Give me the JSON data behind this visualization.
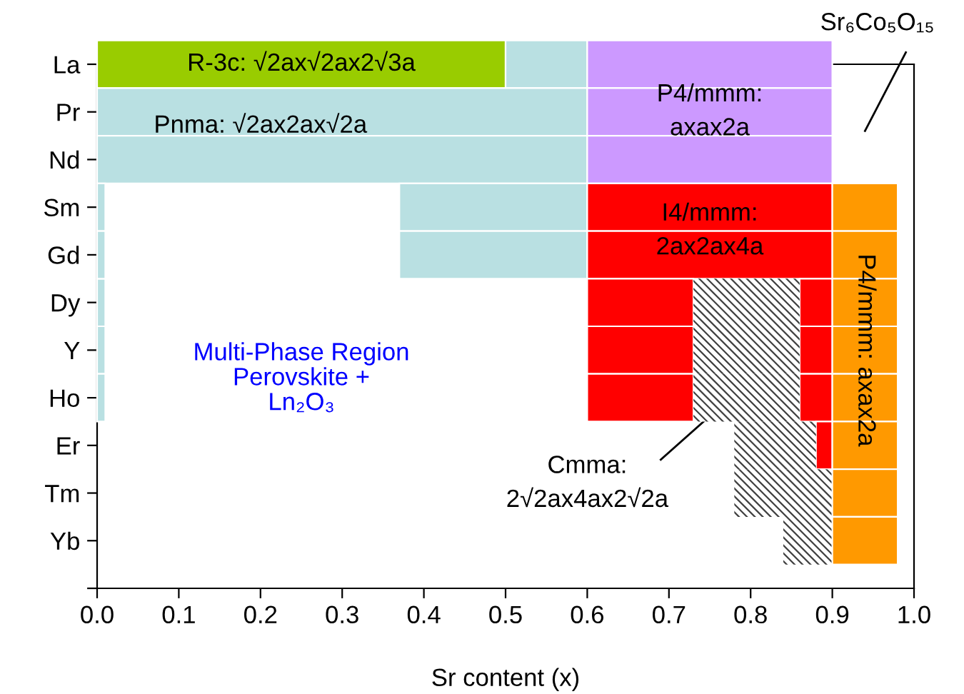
{
  "chart_data": {
    "type": "bar",
    "orientation": "horizontal",
    "xlabel": "Sr content (x)",
    "categories": [
      "La",
      "Pr",
      "Nd",
      "Sm",
      "Gd",
      "Dy",
      "Y",
      "Ho",
      "Er",
      "Tm",
      "Yb",
      null
    ],
    "xlim": [
      0,
      1
    ],
    "xticks": [
      {
        "value": 0,
        "label": "0.0"
      },
      {
        "value": 0.1,
        "label": "0.1"
      },
      {
        "value": 0.2,
        "label": "0.2"
      },
      {
        "value": 0.3,
        "label": "0.3"
      },
      {
        "value": 0.4,
        "label": "0.4"
      },
      {
        "value": 0.5,
        "label": "0.5"
      },
      {
        "value": 0.6,
        "label": "0.6"
      },
      {
        "value": 0.7,
        "label": "0.7"
      },
      {
        "value": 0.8,
        "label": "0.8"
      },
      {
        "value": 0.9,
        "label": "0.9"
      },
      {
        "value": 1,
        "label": "1.0"
      }
    ],
    "series": [
      {
        "name": "R-3c: √2ax√2ax2√3a",
        "color": "#99cc00",
        "base": [
          0,
          null,
          null,
          null,
          null,
          null,
          null,
          null,
          null,
          null,
          null,
          null
        ],
        "values": [
          0.5,
          null,
          null,
          null,
          null,
          null,
          null,
          null,
          null,
          null,
          null,
          null
        ]
      },
      {
        "name": "Pnma: √2ax2ax√2a",
        "color": "#b9e0e2",
        "base": [
          0.5,
          0,
          0,
          0.37,
          0.37,
          0,
          0,
          0,
          null,
          null,
          null,
          null
        ],
        "values": [
          0.1,
          0.6,
          0.6,
          0.23,
          0.23,
          0.01,
          0.01,
          0.01,
          null,
          null,
          null,
          null
        ]
      },
      {
        "color": "#b9e0e2",
        "base": [
          null,
          null,
          null,
          0,
          0,
          null,
          null,
          null,
          null,
          null,
          null,
          null
        ],
        "values": [
          null,
          null,
          null,
          0.01,
          0.01,
          null,
          null,
          null,
          null,
          null,
          null,
          null
        ]
      },
      {
        "name": "P4/mmm:\naxax2a",
        "color": "#cc99ff",
        "base": [
          0.6,
          0.6,
          0.6,
          null,
          null,
          null,
          null,
          null,
          null,
          null,
          null,
          null
        ],
        "values": [
          0.3,
          0.3,
          0.3,
          null,
          null,
          null,
          null,
          null,
          null,
          null,
          null,
          null
        ]
      },
      {
        "name": "I4/mmm:\n2ax2ax4a",
        "color": "#ff0000",
        "base": [
          null,
          null,
          null,
          0.6,
          0.6,
          0.6,
          0.6,
          0.6,
          null,
          null,
          null,
          null
        ],
        "values": [
          null,
          null,
          null,
          0.3,
          0.3,
          0.13,
          0.13,
          0.13,
          null,
          null,
          null,
          null
        ]
      },
      {
        "color": "#ff0000",
        "base": [
          null,
          null,
          null,
          null,
          null,
          0.86,
          0.86,
          0.86,
          0.88,
          null,
          null,
          null
        ],
        "values": [
          null,
          null,
          null,
          null,
          null,
          0.04,
          0.04,
          0.04,
          0.02,
          null,
          null,
          null
        ]
      },
      {
        "name": "Cmma:\n2√2ax4ax2√2a",
        "color": "#404040",
        "base": [
          null,
          null,
          null,
          null,
          null,
          0.73,
          0.73,
          0.73,
          0.78,
          0.78,
          0.84,
          null
        ],
        "values": [
          null,
          null,
          null,
          null,
          null,
          0.13,
          0.13,
          0.13,
          0.1,
          0.12,
          0.06,
          null
        ]
      },
      {
        "name": "P4/mmm: axax2a",
        "color": "#ff9900",
        "base": [
          null,
          null,
          null,
          0.9,
          0.9,
          0.9,
          0.9,
          0.9,
          0.9,
          0.9,
          0.9,
          null
        ],
        "values": [
          null,
          null,
          null,
          0.08,
          0.08,
          0.08,
          0.08,
          0.08,
          0.08,
          0.08,
          0.08,
          null
        ]
      }
    ],
    "annotations": [
      "Multi-Phase Region\nPerovskite +\nLn₂O₃",
      "Sr₆Co₅O₁₅"
    ],
    "grid": false,
    "legend": false
  }
}
